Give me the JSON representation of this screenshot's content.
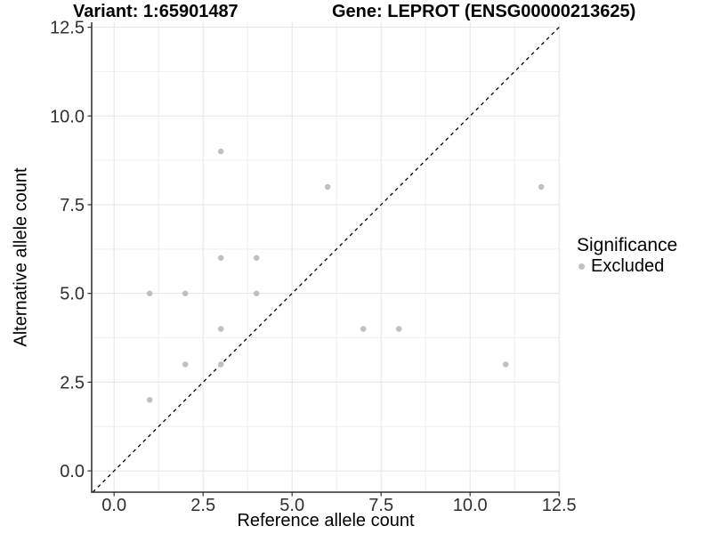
{
  "chart_data": {
    "type": "scatter",
    "title_left": "Variant: 1:65901487",
    "title_right": "Gene: LEPROT (ENSG00000213625)",
    "xlabel": "Reference allele count",
    "ylabel": "Alternative allele count",
    "xlim": [
      -0.63,
      12.52
    ],
    "ylim": [
      -0.6,
      12.64
    ],
    "x_tick_values": [
      0,
      2.5,
      5,
      7.5,
      10,
      12.5
    ],
    "x_tick_labels": [
      "0.0",
      "2.5",
      "5.0",
      "7.5",
      "10.0",
      "12.5"
    ],
    "y_tick_values": [
      0,
      2.5,
      5,
      7.5,
      10,
      12.5
    ],
    "y_tick_labels": [
      "0.0",
      "2.5",
      "5.0",
      "7.5",
      "10.0",
      "12.5"
    ],
    "x_minor_ticks": [
      1.25,
      3.75,
      6.25,
      8.75,
      11.25
    ],
    "y_minor_ticks": [
      1.25,
      3.75,
      6.25,
      8.75,
      11.25
    ],
    "grid": true,
    "legend": {
      "position": "right",
      "title": "Significance",
      "items": [
        {
          "label": "Excluded",
          "color": "#bfbfbf"
        }
      ]
    },
    "reference_line": {
      "type": "identity",
      "slope": 1,
      "intercept": 0,
      "style": "dashed",
      "color": "#000000"
    },
    "series": [
      {
        "name": "Excluded",
        "color": "#bfbfbf",
        "points": [
          [
            1,
            2
          ],
          [
            1,
            5
          ],
          [
            2,
            3
          ],
          [
            2,
            5
          ],
          [
            3,
            3
          ],
          [
            3,
            4
          ],
          [
            3,
            6
          ],
          [
            3,
            9
          ],
          [
            4,
            5
          ],
          [
            4,
            6
          ],
          [
            6,
            8
          ],
          [
            7,
            4
          ],
          [
            8,
            4
          ],
          [
            11,
            3
          ],
          [
            12,
            8
          ]
        ]
      }
    ],
    "colors": {
      "point": "#bfbfbf",
      "grid_major": "#e4e4e4",
      "grid_minor": "#efefef",
      "axis": "#2f2f2f",
      "tick_text": "#303030"
    }
  }
}
